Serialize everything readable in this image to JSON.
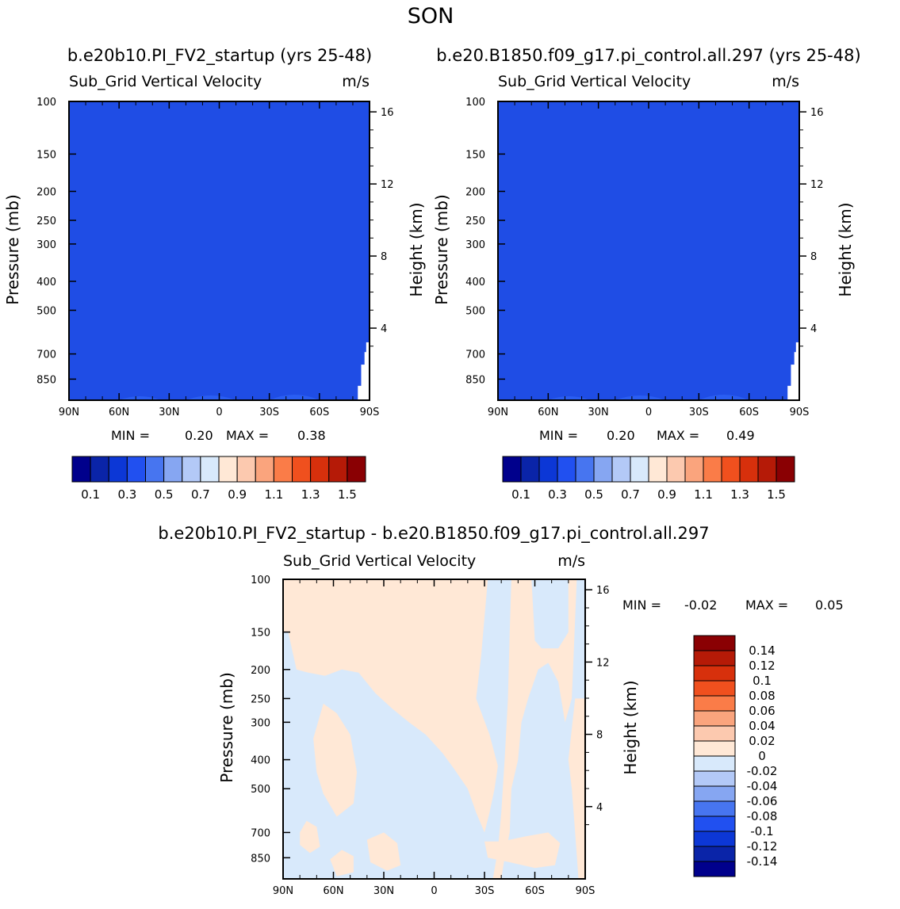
{
  "page_title": "SON",
  "chart_data": [
    {
      "id": "panel1",
      "type": "heatmap",
      "case_title": "b.e20b10.PI_FV2_startup (yrs 25-48)",
      "variable": "Sub_Grid Vertical Velocity",
      "units": "m/s",
      "xlabel": "",
      "ylabel": "Pressure (mb)",
      "y2label": "Height (km)",
      "x_tick_labels": [
        "90N",
        "60N",
        "30N",
        "0",
        "30S",
        "60S",
        "90S"
      ],
      "x_tick_values": [
        90,
        60,
        30,
        0,
        -30,
        -60,
        -90
      ],
      "y_tick_labels": [
        "100",
        "150",
        "200",
        "250",
        "300",
        "400",
        "500",
        "700",
        "850"
      ],
      "y_tick_values": [
        100,
        150,
        200,
        250,
        300,
        400,
        500,
        700,
        850
      ],
      "y2_tick_labels": [
        "16",
        "12",
        "8",
        "4"
      ],
      "y2_tick_values": [
        16,
        12,
        8,
        4
      ],
      "ylim": [
        100,
        1000
      ],
      "min_label": "MIN =",
      "min_value": "0.20",
      "max_label": "MAX =",
      "max_value": "0.38",
      "fill_color": "#1F4DE5",
      "bump_color": "#2A5EF2",
      "colorbar": {
        "colors": [
          "#00008C",
          "#0A24A8",
          "#0C37D6",
          "#2150F0",
          "#4775F0",
          "#86A6F2",
          "#B3C9F7",
          "#D8E9FB",
          "#FFE8D6",
          "#FCC9AF",
          "#FAA47D",
          "#FA7C48",
          "#F0501E",
          "#D7300C",
          "#B51A07",
          "#8A0003"
        ],
        "labels": [
          "0.1",
          "0.3",
          "0.5",
          "0.7",
          "0.9",
          "1.1",
          "1.3",
          "1.5"
        ]
      }
    },
    {
      "id": "panel2",
      "type": "heatmap",
      "case_title": "b.e20.B1850.f09_g17.pi_control.all.297 (yrs 25-48)",
      "variable": "Sub_Grid Vertical Velocity",
      "units": "m/s",
      "xlabel": "",
      "ylabel": "Pressure (mb)",
      "y2label": "Height (km)",
      "x_tick_labels": [
        "90N",
        "60N",
        "30N",
        "0",
        "30S",
        "60S",
        "90S"
      ],
      "x_tick_values": [
        90,
        60,
        30,
        0,
        -30,
        -60,
        -90
      ],
      "y_tick_labels": [
        "100",
        "150",
        "200",
        "250",
        "300",
        "400",
        "500",
        "700",
        "850"
      ],
      "y_tick_values": [
        100,
        150,
        200,
        250,
        300,
        400,
        500,
        700,
        850
      ],
      "y2_tick_labels": [
        "16",
        "12",
        "8",
        "4"
      ],
      "y2_tick_values": [
        16,
        12,
        8,
        4
      ],
      "ylim": [
        100,
        1000
      ],
      "min_label": "MIN =",
      "min_value": "0.20",
      "max_label": "MAX =",
      "max_value": "0.49",
      "fill_color": "#1F4DE5",
      "bump_color": "#2A5EF2",
      "colorbar": {
        "colors": [
          "#00008C",
          "#0A24A8",
          "#0C37D6",
          "#2150F0",
          "#4775F0",
          "#86A6F2",
          "#B3C9F7",
          "#D8E9FB",
          "#FFE8D6",
          "#FCC9AF",
          "#FAA47D",
          "#FA7C48",
          "#F0501E",
          "#D7300C",
          "#B51A07",
          "#8A0003"
        ],
        "labels": [
          "0.1",
          "0.3",
          "0.5",
          "0.7",
          "0.9",
          "1.1",
          "1.3",
          "1.5"
        ]
      }
    },
    {
      "id": "panel3",
      "type": "heatmap",
      "case_title": "b.e20b10.PI_FV2_startup - b.e20.B1850.f09_g17.pi_control.all.297",
      "variable": "Sub_Grid Vertical Velocity",
      "units": "m/s",
      "xlabel": "",
      "ylabel": "Pressure (mb)",
      "y2label": "Height (km)",
      "x_tick_labels": [
        "90N",
        "60N",
        "30N",
        "0",
        "30S",
        "60S",
        "90S"
      ],
      "x_tick_values": [
        90,
        60,
        30,
        0,
        -30,
        -60,
        -90
      ],
      "y_tick_labels": [
        "100",
        "150",
        "200",
        "250",
        "300",
        "400",
        "500",
        "700",
        "850"
      ],
      "y_tick_values": [
        100,
        150,
        200,
        250,
        300,
        400,
        500,
        700,
        850
      ],
      "y2_tick_labels": [
        "16",
        "12",
        "8",
        "4"
      ],
      "y2_tick_values": [
        16,
        12,
        8,
        4
      ],
      "ylim": [
        100,
        1000
      ],
      "min_label": "MIN =",
      "min_value": "-0.02",
      "max_label": "MAX =",
      "max_value": "0.05",
      "positive_color": "#FFE8D6",
      "negative_color": "#D8E9FB",
      "colorbar": {
        "colors": [
          "#00008C",
          "#0A24A8",
          "#0C37D6",
          "#2150F0",
          "#4775F0",
          "#86A6F2",
          "#B3C9F7",
          "#D8E9FB",
          "#FFE8D6",
          "#FCC9AF",
          "#FAA47D",
          "#FA7C48",
          "#F0501E",
          "#D7300C",
          "#B51A07",
          "#8A0003"
        ],
        "labels": [
          "0.14",
          "0.12",
          "0.1",
          "0.08",
          "0.06",
          "0.04",
          "0.02",
          "0",
          "-0.02",
          "-0.04",
          "-0.06",
          "-0.08",
          "-0.1",
          "-0.12",
          "-0.14"
        ]
      }
    }
  ]
}
